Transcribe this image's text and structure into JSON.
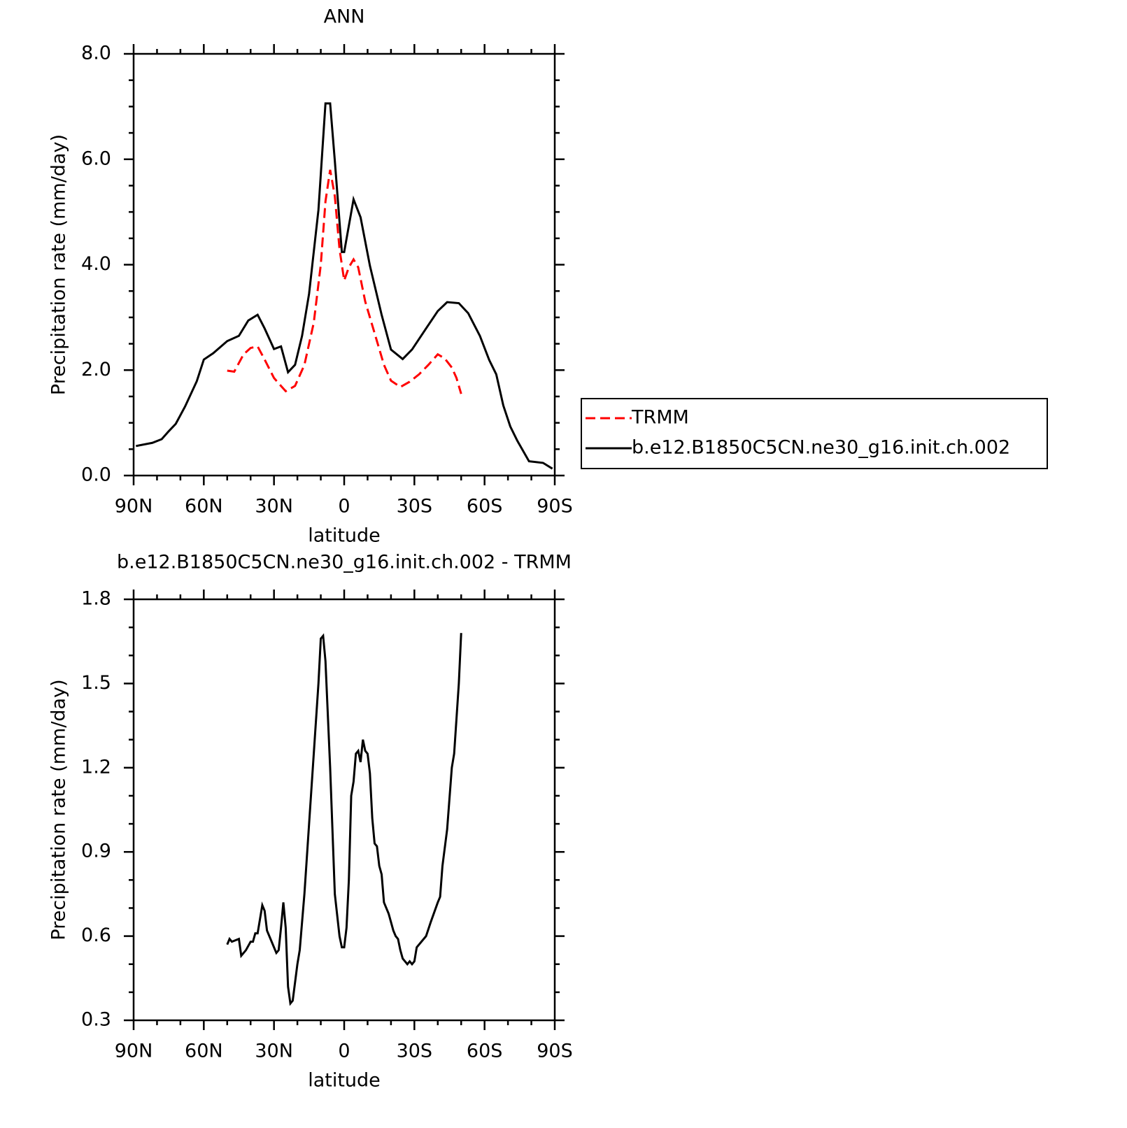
{
  "chart_data": [
    {
      "type": "line",
      "title": "ANN",
      "xlabel": "latitude",
      "ylabel": "Precipitation rate (mm/day)",
      "xlim": [
        90,
        -90
      ],
      "xticks": [
        {
          "value": 90,
          "label": "90N"
        },
        {
          "value": 60,
          "label": "60N"
        },
        {
          "value": 30,
          "label": "30N"
        },
        0,
        {
          "value": -30,
          "label": "30S"
        },
        {
          "value": -60,
          "label": "60S"
        },
        {
          "value": -90,
          "label": "90S"
        }
      ],
      "ylim": [
        0,
        8
      ],
      "yticks": [
        {
          "value": 0,
          "label": "0.0"
        },
        {
          "value": 2,
          "label": "2.0"
        },
        {
          "value": 4,
          "label": "4.0"
        },
        {
          "value": 6,
          "label": "6.0"
        },
        {
          "value": 8,
          "label": "8.0"
        }
      ],
      "legend": "right",
      "series": [
        {
          "name": "TRMM",
          "color": "#ff0000",
          "line_style": "dashed",
          "x": [
            50,
            47,
            43,
            40,
            37,
            34,
            30,
            25,
            21,
            17,
            13,
            10,
            8,
            6,
            4,
            2,
            0,
            -2,
            -4,
            -6,
            -9,
            -13,
            -17,
            -20,
            -24,
            -28,
            -32,
            -36,
            -40,
            -43,
            -46,
            -48,
            -50
          ],
          "values": [
            1.99,
            1.97,
            2.3,
            2.42,
            2.45,
            2.2,
            1.85,
            1.6,
            1.7,
            2.1,
            2.9,
            4.0,
            5.2,
            5.8,
            5.3,
            4.3,
            3.7,
            3.95,
            4.1,
            3.95,
            3.3,
            2.7,
            2.1,
            1.8,
            1.68,
            1.78,
            1.92,
            2.1,
            2.3,
            2.22,
            2.05,
            1.85,
            1.55
          ]
        },
        {
          "name": "b.e12.B1850C5CN.ne30_g16.init.ch.002",
          "color": "#000000",
          "line_style": "solid",
          "x": [
            89,
            82,
            78,
            75,
            72,
            68,
            63,
            60,
            56,
            50,
            45,
            41,
            37,
            34,
            30,
            27,
            24,
            21,
            18,
            15,
            11,
            8,
            6,
            4,
            1,
            0,
            -4,
            -7,
            -11,
            -16,
            -20,
            -25,
            -29,
            -35,
            -40,
            -44,
            -49,
            -53,
            -58,
            -62,
            -65,
            -68,
            -71,
            -74,
            -79,
            -85,
            -89
          ],
          "values": [
            0.56,
            0.62,
            0.69,
            0.84,
            0.98,
            1.31,
            1.79,
            2.2,
            2.32,
            2.55,
            2.65,
            2.94,
            3.05,
            2.79,
            2.4,
            2.45,
            1.96,
            2.1,
            2.65,
            3.45,
            5.04,
            7.06,
            7.06,
            5.97,
            4.24,
            4.24,
            5.24,
            4.9,
            3.98,
            3.05,
            2.39,
            2.21,
            2.39,
            2.79,
            3.12,
            3.29,
            3.27,
            3.08,
            2.65,
            2.19,
            1.92,
            1.33,
            0.93,
            0.66,
            0.27,
            0.24,
            0.13
          ]
        }
      ]
    },
    {
      "type": "line",
      "title": "b.e12.B1850C5CN.ne30_g16.init.ch.002 - TRMM",
      "xlabel": "latitude",
      "ylabel": "Precipitation rate (mm/day)",
      "xlim": [
        90,
        -90
      ],
      "xticks": [
        {
          "value": 90,
          "label": "90N"
        },
        {
          "value": 60,
          "label": "60N"
        },
        {
          "value": 30,
          "label": "30N"
        },
        0,
        {
          "value": -30,
          "label": "30S"
        },
        {
          "value": -60,
          "label": "60S"
        },
        {
          "value": -90,
          "label": "90S"
        }
      ],
      "ylim": [
        0.3,
        1.8
      ],
      "yticks": [
        0.3,
        0.6,
        0.9,
        1.2,
        1.5,
        1.8
      ],
      "series": [
        {
          "color": "#000000",
          "line_style": "solid",
          "x": [
            50,
            49,
            48,
            45,
            44,
            42,
            40,
            39,
            38,
            37,
            35,
            34,
            33,
            31,
            29,
            28,
            27,
            26,
            25,
            24,
            23,
            22,
            20,
            19,
            17,
            15,
            13,
            11,
            10,
            9,
            8,
            6,
            4,
            2,
            1,
            0,
            -1,
            -2,
            -3,
            -4,
            -5,
            -6,
            -7,
            -8,
            -9,
            -10,
            -11,
            -12,
            -13,
            -14,
            -15,
            -16,
            -17,
            -19,
            -21,
            -22,
            -23,
            -24,
            -25,
            -27,
            -28,
            -29,
            -30,
            -31,
            -33,
            -35,
            -37,
            -40,
            -41,
            -42,
            -44,
            -46,
            -47,
            -49,
            -50
          ],
          "values": [
            0.57,
            0.59,
            0.58,
            0.59,
            0.53,
            0.55,
            0.58,
            0.58,
            0.61,
            0.61,
            0.71,
            0.69,
            0.62,
            0.58,
            0.54,
            0.55,
            0.63,
            0.72,
            0.63,
            0.42,
            0.36,
            0.37,
            0.5,
            0.55,
            0.75,
            1.0,
            1.25,
            1.5,
            1.66,
            1.67,
            1.58,
            1.2,
            0.75,
            0.6,
            0.56,
            0.56,
            0.63,
            0.8,
            1.1,
            1.15,
            1.25,
            1.26,
            1.22,
            1.3,
            1.26,
            1.25,
            1.18,
            1.02,
            0.93,
            0.92,
            0.85,
            0.82,
            0.72,
            0.68,
            0.62,
            0.6,
            0.59,
            0.55,
            0.52,
            0.5,
            0.51,
            0.5,
            0.51,
            0.56,
            0.58,
            0.6,
            0.65,
            0.72,
            0.74,
            0.85,
            0.98,
            1.2,
            1.25,
            1.5,
            1.68
          ]
        }
      ]
    }
  ]
}
